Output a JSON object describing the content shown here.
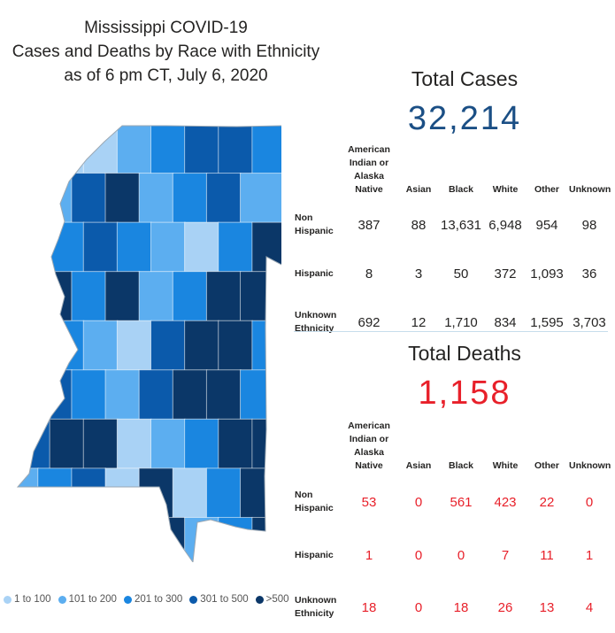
{
  "title": {
    "line1": "Mississippi COVID-19",
    "line2": "Cases and Deaths by Race with Ethnicity",
    "line3": "as of 6 pm CT, July 6, 2020"
  },
  "colors": {
    "bin1": "#a9d2f5",
    "bin2": "#5caef0",
    "bin3": "#1a86e0",
    "bin4": "#0b5aab",
    "bin5": "#0b3768",
    "cases_number": "#1b4f85",
    "deaths_number": "#e8202a"
  },
  "legend": [
    {
      "label": "1 to 100",
      "color": "#a9d2f5"
    },
    {
      "label": "101 to 200",
      "color": "#5caef0"
    },
    {
      "label": "201 to 300",
      "color": "#1a86e0"
    },
    {
      "label": "301 to 500",
      "color": "#0b5aab"
    },
    {
      "label": ">500",
      "color": "#0b3768"
    }
  ],
  "cases": {
    "heading": "Total Cases",
    "total": "32,214",
    "columns": [
      "American Indian or Alaska Native",
      "Asian",
      "Black",
      "White",
      "Other",
      "Unknown"
    ],
    "rows": [
      {
        "label": "Non Hispanic",
        "values": [
          "387",
          "88",
          "13,631",
          "6,948",
          "954",
          "98"
        ]
      },
      {
        "label": "Hispanic",
        "values": [
          "8",
          "3",
          "50",
          "372",
          "1,093",
          "36"
        ]
      },
      {
        "label": "Unknown Ethnicity",
        "values": [
          "692",
          "12",
          "1,710",
          "834",
          "1,595",
          "3,703"
        ]
      }
    ]
  },
  "deaths": {
    "heading": "Total Deaths",
    "total": "1,158",
    "columns": [
      "American Indian or Alaska Native",
      "Asian",
      "Black",
      "White",
      "Other",
      "Unknown"
    ],
    "rows": [
      {
        "label": "Non Hispanic",
        "values": [
          "53",
          "0",
          "561",
          "423",
          "22",
          "0"
        ]
      },
      {
        "label": "Hispanic",
        "values": [
          "1",
          "0",
          "0",
          "7",
          "11",
          "1"
        ]
      },
      {
        "label": "Unknown Ethnicity",
        "values": [
          "18",
          "0",
          "18",
          "26",
          "13",
          "4"
        ]
      }
    ]
  },
  "map_counties": [
    {
      "bin": 5
    },
    {
      "bin": 1
    },
    {
      "bin": 1
    },
    {
      "bin": 2
    },
    {
      "bin": 3
    },
    {
      "bin": 4
    },
    {
      "bin": 4
    },
    {
      "bin": 3
    },
    {
      "bin": 1
    },
    {
      "bin": 2
    },
    {
      "bin": 4
    },
    {
      "bin": 5
    },
    {
      "bin": 2
    },
    {
      "bin": 3
    },
    {
      "bin": 4
    },
    {
      "bin": 2
    },
    {
      "bin": 5
    },
    {
      "bin": 3
    },
    {
      "bin": 4
    },
    {
      "bin": 3
    },
    {
      "bin": 2
    },
    {
      "bin": 1
    },
    {
      "bin": 3
    },
    {
      "bin": 5
    },
    {
      "bin": 4
    },
    {
      "bin": 5
    },
    {
      "bin": 3
    },
    {
      "bin": 5
    },
    {
      "bin": 2
    },
    {
      "bin": 3
    },
    {
      "bin": 5
    },
    {
      "bin": 5
    },
    {
      "bin": 4
    },
    {
      "bin": 3
    },
    {
      "bin": 2
    },
    {
      "bin": 1
    },
    {
      "bin": 4
    },
    {
      "bin": 5
    },
    {
      "bin": 5
    },
    {
      "bin": 3
    },
    {
      "bin": 5
    },
    {
      "bin": 4
    },
    {
      "bin": 3
    },
    {
      "bin": 2
    },
    {
      "bin": 4
    },
    {
      "bin": 5
    },
    {
      "bin": 5
    },
    {
      "bin": 3
    },
    {
      "bin": 4
    },
    {
      "bin": 5
    },
    {
      "bin": 5
    },
    {
      "bin": 1
    },
    {
      "bin": 2
    },
    {
      "bin": 3
    },
    {
      "bin": 5
    },
    {
      "bin": 5
    },
    {
      "bin": 2
    },
    {
      "bin": 3
    },
    {
      "bin": 4
    },
    {
      "bin": 1
    },
    {
      "bin": 5
    },
    {
      "bin": 1
    },
    {
      "bin": 3
    },
    {
      "bin": 5
    },
    {
      "bin": 4
    },
    {
      "bin": 3
    },
    {
      "bin": 1
    },
    {
      "bin": 3
    },
    {
      "bin": 5
    },
    {
      "bin": 2
    },
    {
      "bin": 3
    },
    {
      "bin": 5
    }
  ]
}
